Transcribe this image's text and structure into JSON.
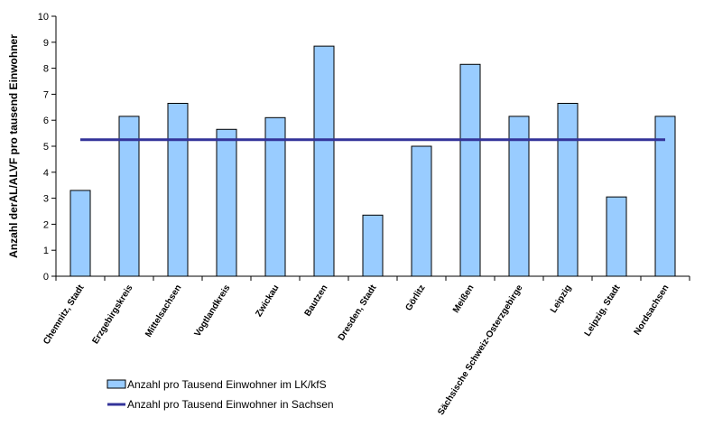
{
  "chart_data": {
    "type": "bar",
    "title": "",
    "xlabel": "",
    "ylabel": "Anzahl derAL/ALVF pro tausend Einwohner",
    "ylim": [
      0,
      10
    ],
    "yticks": [
      "0",
      "1",
      "2",
      "3",
      "4",
      "5",
      "6",
      "7",
      "8",
      "9",
      "10"
    ],
    "categories": [
      "Chemnitz, Stadt",
      "Erzgebirgskreis",
      "Mittelsachsen",
      "Vogtlandkreis",
      "Zwickau",
      "Bautzen",
      "Dresden, Stadt",
      "Görlitz",
      "Meißen",
      "Sächsische Schweiz-Osterzgebirge",
      "Leipzig",
      "Leipzig, Stadt",
      "Nordsachsen"
    ],
    "series": [
      {
        "name": "Anzahl pro Tausend Einwohner im LK/kfS",
        "type": "bar",
        "color": "#99ccff",
        "values": [
          3.3,
          6.15,
          6.65,
          5.65,
          6.1,
          8.85,
          2.35,
          5.0,
          8.15,
          6.15,
          6.65,
          3.05,
          6.15
        ]
      },
      {
        "name": "Anzahl pro Tausend Einwohner in Sachsen",
        "type": "line",
        "color": "#333399",
        "value": 5.25
      }
    ],
    "grid": false,
    "legend_position": "bottom-left"
  }
}
